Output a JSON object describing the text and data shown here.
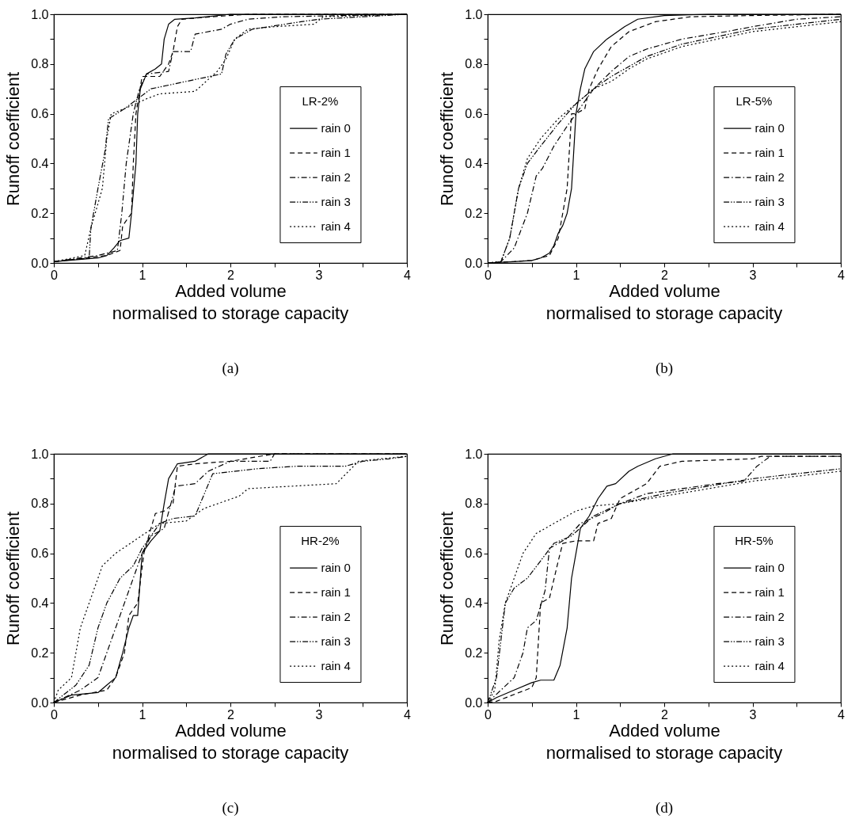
{
  "chart_data": [
    {
      "type": "line",
      "xlabel": "Added volume",
      "ylabel": "Runoff coefficient",
      "legend_title": "LR-2%",
      "legend": "right",
      "annotations": [
        "normalised to storage capacity",
        "(a)"
      ],
      "xlim": [
        0,
        4
      ],
      "ylim": [
        0,
        1
      ],
      "xticks": [
        0,
        {
          "value": 0.5,
          "label": null
        },
        1,
        {
          "value": 1.5,
          "label": null
        },
        2,
        {
          "value": 2.5,
          "label": null
        },
        3,
        {
          "value": 3.5,
          "label": null
        },
        4
      ],
      "yticks": [
        {
          "value": 0,
          "label": "0.0"
        },
        {
          "value": 0.1,
          "label": null
        },
        0.2,
        {
          "value": 0.3,
          "label": null
        },
        0.4,
        {
          "value": 0.5,
          "label": null
        },
        0.6,
        {
          "value": 0.7,
          "label": null
        },
        0.8,
        {
          "value": 0.9,
          "label": null
        },
        {
          "value": 1,
          "label": "1.0"
        }
      ],
      "series": [
        {
          "name": "rain 0",
          "color": "#000000",
          "line_style": "solid",
          "x": [
            0,
            0.5,
            0.6,
            0.68,
            0.75,
            0.85,
            0.88,
            0.93,
            0.95,
            0.98,
            1.05,
            1.15,
            1.22,
            1.25,
            1.3,
            1.37,
            1.6,
            2,
            4
          ],
          "values": [
            0.005,
            0.02,
            0.03,
            0.06,
            0.09,
            0.1,
            0.2,
            0.4,
            0.6,
            0.7,
            0.76,
            0.78,
            0.8,
            0.9,
            0.96,
            0.98,
            0.985,
            1,
            1
          ]
        },
        {
          "name": "rain 1",
          "color": "#000000",
          "line_style": "dashed",
          "x": [
            0,
            0.6,
            0.75,
            0.78,
            0.88,
            0.9,
            0.93,
            1,
            1.2,
            1.3,
            1.35,
            1.4,
            1.45,
            1.8,
            2.2,
            4
          ],
          "values": [
            0.005,
            0.03,
            0.05,
            0.15,
            0.2,
            0.4,
            0.6,
            0.75,
            0.75,
            0.8,
            0.85,
            0.95,
            0.98,
            0.99,
            1,
            1
          ]
        },
        {
          "name": "rain 2",
          "color": "#000000",
          "line_style": "dashdot",
          "x": [
            0,
            0.5,
            0.72,
            0.77,
            0.82,
            0.9,
            0.97,
            1.05,
            1.3,
            1.35,
            1.55,
            1.6,
            1.9,
            2,
            2.2,
            2.6,
            4
          ],
          "values": [
            0.005,
            0.03,
            0.05,
            0.2,
            0.4,
            0.6,
            0.7,
            0.76,
            0.77,
            0.85,
            0.85,
            0.92,
            0.94,
            0.96,
            0.98,
            0.99,
            1
          ]
        },
        {
          "name": "rain 3",
          "color": "#000000",
          "line_style": "dashdotdot",
          "x": [
            0,
            0.4,
            0.42,
            0.5,
            0.58,
            0.62,
            0.8,
            0.95,
            1.1,
            1.5,
            1.9,
            1.95,
            2.05,
            2.25,
            2.8,
            3,
            4
          ],
          "values": [
            0.005,
            0.02,
            0.14,
            0.3,
            0.45,
            0.58,
            0.62,
            0.66,
            0.7,
            0.73,
            0.76,
            0.84,
            0.9,
            0.94,
            0.97,
            0.98,
            1
          ]
        },
        {
          "name": "rain 4",
          "color": "#000000",
          "line_style": "dotted",
          "x": [
            0,
            0.35,
            0.42,
            0.55,
            0.6,
            0.65,
            0.8,
            1.05,
            1.2,
            1.6,
            1.85,
            1.95,
            2.05,
            2.2,
            2.5,
            2.95,
            3.05,
            4
          ],
          "values": [
            0.005,
            0.03,
            0.14,
            0.3,
            0.5,
            0.6,
            0.62,
            0.66,
            0.68,
            0.69,
            0.77,
            0.82,
            0.9,
            0.94,
            0.95,
            0.96,
            0.99,
            1
          ]
        }
      ]
    },
    {
      "type": "line",
      "xlabel": "Added volume",
      "ylabel": "Runoff coefficient",
      "legend_title": "LR-5%",
      "legend": "right",
      "annotations": [
        "normalised to storage capacity",
        "(b)"
      ],
      "xlim": [
        0,
        4
      ],
      "ylim": [
        0,
        1
      ],
      "xticks": [
        0,
        {
          "value": 0.5,
          "label": null
        },
        1,
        {
          "value": 1.5,
          "label": null
        },
        2,
        {
          "value": 2.5,
          "label": null
        },
        3,
        {
          "value": 3.5,
          "label": null
        },
        4
      ],
      "yticks": [
        {
          "value": 0,
          "label": "0.0"
        },
        {
          "value": 0.1,
          "label": null
        },
        0.2,
        {
          "value": 0.3,
          "label": null
        },
        0.4,
        {
          "value": 0.5,
          "label": null
        },
        0.6,
        {
          "value": 0.7,
          "label": null
        },
        0.8,
        {
          "value": 0.9,
          "label": null
        },
        {
          "value": 1,
          "label": "1.0"
        }
      ],
      "series": [
        {
          "name": "rain 0",
          "color": "#000000",
          "line_style": "solid",
          "x": [
            0,
            0.3,
            0.5,
            0.6,
            0.7,
            0.75,
            0.8,
            0.85,
            0.9,
            0.95,
            1,
            1.05,
            1.1,
            1.2,
            1.35,
            1.55,
            1.7,
            2,
            2.5,
            4
          ],
          "values": [
            0,
            0.005,
            0.01,
            0.02,
            0.04,
            0.07,
            0.12,
            0.15,
            0.2,
            0.3,
            0.6,
            0.7,
            0.78,
            0.85,
            0.9,
            0.95,
            0.98,
            0.995,
            1,
            1
          ]
        },
        {
          "name": "rain 1",
          "color": "#000000",
          "line_style": "dashed",
          "x": [
            0,
            0.5,
            0.7,
            0.8,
            0.9,
            0.95,
            1,
            1.1,
            1.15,
            1.25,
            1.4,
            1.6,
            1.9,
            2.3,
            3,
            4
          ],
          "values": [
            0,
            0.01,
            0.03,
            0.1,
            0.3,
            0.6,
            0.6,
            0.62,
            0.7,
            0.78,
            0.87,
            0.93,
            0.97,
            0.99,
            0.995,
            1
          ]
        },
        {
          "name": "rain 2",
          "color": "#000000",
          "line_style": "dashdot",
          "x": [
            0,
            0.15,
            0.3,
            0.45,
            0.55,
            0.62,
            0.75,
            0.9,
            1,
            1.1,
            1.2,
            1.4,
            1.6,
            1.8,
            2.2,
            2.7,
            3,
            3.5,
            4
          ],
          "values": [
            0,
            0.005,
            0.06,
            0.2,
            0.35,
            0.38,
            0.47,
            0.55,
            0.6,
            0.65,
            0.7,
            0.77,
            0.83,
            0.86,
            0.9,
            0.93,
            0.95,
            0.98,
            0.99
          ]
        },
        {
          "name": "rain 3",
          "color": "#000000",
          "line_style": "dashdotdot",
          "x": [
            0,
            0.15,
            0.25,
            0.35,
            0.45,
            0.6,
            0.8,
            1,
            1.2,
            1.4,
            1.6,
            1.8,
            2.2,
            2.6,
            3,
            3.5,
            4
          ],
          "values": [
            0,
            0.005,
            0.1,
            0.3,
            0.4,
            0.47,
            0.56,
            0.64,
            0.7,
            0.75,
            0.79,
            0.83,
            0.88,
            0.91,
            0.94,
            0.96,
            0.98
          ]
        },
        {
          "name": "rain 4",
          "color": "#000000",
          "line_style": "dotted",
          "x": [
            0,
            0.15,
            0.25,
            0.35,
            0.45,
            0.6,
            0.8,
            1,
            1.2,
            1.4,
            1.6,
            1.8,
            2.2,
            2.6,
            3,
            3.5,
            4
          ],
          "values": [
            0,
            0.005,
            0.1,
            0.3,
            0.42,
            0.5,
            0.58,
            0.64,
            0.7,
            0.73,
            0.78,
            0.82,
            0.87,
            0.9,
            0.93,
            0.95,
            0.97
          ]
        }
      ]
    },
    {
      "type": "line",
      "xlabel": "Added volume",
      "ylabel": "Runoff coefficient",
      "legend_title": "HR-2%",
      "legend": "right",
      "annotations": [
        "normalised to storage capacity",
        "(c)"
      ],
      "xlim": [
        0,
        4
      ],
      "ylim": [
        0,
        1
      ],
      "xticks": [
        0,
        {
          "value": 0.5,
          "label": null
        },
        1,
        {
          "value": 1.5,
          "label": null
        },
        2,
        {
          "value": 2.5,
          "label": null
        },
        3,
        {
          "value": 3.5,
          "label": null
        },
        4
      ],
      "yticks": [
        {
          "value": 0,
          "label": "0.0"
        },
        {
          "value": 0.1,
          "label": null
        },
        0.2,
        {
          "value": 0.3,
          "label": null
        },
        0.4,
        {
          "value": 0.5,
          "label": null
        },
        0.6,
        {
          "value": 0.7,
          "label": null
        },
        0.8,
        {
          "value": 0.9,
          "label": null
        },
        {
          "value": 1,
          "label": "1.0"
        }
      ],
      "series": [
        {
          "name": "rain 0",
          "color": "#000000",
          "line_style": "solid",
          "x": [
            0,
            0.2,
            0.5,
            0.6,
            0.7,
            0.78,
            0.85,
            0.9,
            0.95,
            1,
            1.1,
            1.2,
            1.25,
            1.3,
            1.4,
            1.6,
            1.75,
            4
          ],
          "values": [
            0,
            0.03,
            0.04,
            0.07,
            0.1,
            0.2,
            0.3,
            0.35,
            0.35,
            0.6,
            0.65,
            0.69,
            0.8,
            0.9,
            0.96,
            0.97,
            1,
            1
          ]
        },
        {
          "name": "rain 1",
          "color": "#000000",
          "line_style": "dashed",
          "x": [
            0,
            0.3,
            0.6,
            0.7,
            0.8,
            0.85,
            0.95,
            1.02,
            1.1,
            1.15,
            1.25,
            1.35,
            1.4,
            1.6,
            2,
            2.5,
            4
          ],
          "values": [
            0,
            0.03,
            0.05,
            0.1,
            0.2,
            0.35,
            0.4,
            0.6,
            0.7,
            0.76,
            0.77,
            0.8,
            0.95,
            0.96,
            0.97,
            1,
            1
          ]
        },
        {
          "name": "rain 2",
          "color": "#000000",
          "line_style": "dashdot",
          "x": [
            0,
            0.3,
            0.5,
            0.7,
            0.8,
            0.9,
            1,
            1.1,
            1.25,
            1.38,
            1.6,
            1.75,
            2,
            2.45,
            2.5,
            4
          ],
          "values": [
            0,
            0.05,
            0.1,
            0.3,
            0.4,
            0.5,
            0.6,
            0.67,
            0.7,
            0.87,
            0.88,
            0.93,
            0.97,
            0.97,
            1,
            1
          ]
        },
        {
          "name": "rain 3",
          "color": "#000000",
          "line_style": "dashdotdot",
          "x": [
            0,
            0.25,
            0.4,
            0.5,
            0.6,
            0.75,
            0.9,
            1,
            1.2,
            1.35,
            1.6,
            1.8,
            2.3,
            2.75,
            3.3,
            3.5,
            3.8,
            4
          ],
          "values": [
            0,
            0.07,
            0.15,
            0.3,
            0.4,
            0.5,
            0.55,
            0.62,
            0.72,
            0.74,
            0.75,
            0.92,
            0.94,
            0.95,
            0.95,
            0.97,
            0.98,
            0.99
          ]
        },
        {
          "name": "rain 4",
          "color": "#000000",
          "line_style": "dotted",
          "x": [
            0,
            0.05,
            0.2,
            0.3,
            0.4,
            0.55,
            0.7,
            0.95,
            1.2,
            1.5,
            1.7,
            2.1,
            2.2,
            3.2,
            3.45,
            3.7,
            4
          ],
          "values": [
            0,
            0.05,
            0.1,
            0.3,
            0.4,
            0.55,
            0.6,
            0.66,
            0.72,
            0.73,
            0.78,
            0.83,
            0.86,
            0.88,
            0.97,
            0.98,
            0.99
          ]
        }
      ]
    },
    {
      "type": "line",
      "xlabel": "Added volume",
      "ylabel": "Runoff coefficient",
      "legend_title": "HR-5%",
      "legend": "right",
      "annotations": [
        "normalised to storage capacity",
        "(d)"
      ],
      "xlim": [
        0,
        4
      ],
      "ylim": [
        0,
        1
      ],
      "xticks": [
        0,
        {
          "value": 0.5,
          "label": null
        },
        1,
        {
          "value": 1.5,
          "label": null
        },
        2,
        {
          "value": 2.5,
          "label": null
        },
        3,
        {
          "value": 3.5,
          "label": null
        },
        4
      ],
      "yticks": [
        {
          "value": 0,
          "label": "0.0"
        },
        {
          "value": 0.1,
          "label": null
        },
        0.2,
        {
          "value": 0.3,
          "label": null
        },
        0.4,
        {
          "value": 0.5,
          "label": null
        },
        0.6,
        {
          "value": 0.7,
          "label": null
        },
        0.8,
        {
          "value": 0.9,
          "label": null
        },
        {
          "value": 1,
          "label": "1.0"
        }
      ],
      "series": [
        {
          "name": "rain 0",
          "color": "#000000",
          "line_style": "solid",
          "x": [
            0,
            0.1,
            0.3,
            0.5,
            0.6,
            0.75,
            0.82,
            0.9,
            0.95,
            1,
            1.05,
            1.15,
            1.25,
            1.35,
            1.45,
            1.6,
            1.7,
            1.9,
            2.1,
            4
          ],
          "values": [
            0,
            0.02,
            0.05,
            0.08,
            0.09,
            0.09,
            0.15,
            0.3,
            0.5,
            0.6,
            0.7,
            0.75,
            0.82,
            0.87,
            0.88,
            0.93,
            0.95,
            0.98,
            1,
            1
          ]
        },
        {
          "name": "rain 1",
          "color": "#000000",
          "line_style": "dashed",
          "x": [
            0,
            0.1,
            0.5,
            0.55,
            0.6,
            0.7,
            0.8,
            0.85,
            1,
            1.2,
            1.25,
            1.4,
            1.5,
            1.8,
            1.95,
            2.2,
            3,
            3.1,
            4
          ],
          "values": [
            0,
            0.005,
            0.06,
            0.1,
            0.4,
            0.42,
            0.57,
            0.64,
            0.65,
            0.65,
            0.72,
            0.74,
            0.82,
            0.88,
            0.95,
            0.97,
            0.98,
            0.99,
            0.99
          ]
        },
        {
          "name": "rain 2",
          "color": "#000000",
          "line_style": "dashdot",
          "x": [
            0,
            0.3,
            0.4,
            0.45,
            0.55,
            0.65,
            0.7,
            0.9,
            1.05,
            1.3,
            1.5,
            1.8,
            2.2,
            2.6,
            2.9,
            3.05,
            3.2,
            4
          ],
          "values": [
            0,
            0.1,
            0.2,
            0.3,
            0.33,
            0.45,
            0.62,
            0.66,
            0.72,
            0.76,
            0.8,
            0.84,
            0.86,
            0.88,
            0.89,
            0.95,
            0.99,
            0.99
          ]
        },
        {
          "name": "rain 3",
          "color": "#000000",
          "line_style": "dashdotdot",
          "x": [
            0,
            0.1,
            0.15,
            0.2,
            0.3,
            0.45,
            0.6,
            0.75,
            0.95,
            1.2,
            1.5,
            2,
            2.5,
            3,
            3.5,
            4
          ],
          "values": [
            0,
            0.1,
            0.25,
            0.4,
            0.46,
            0.5,
            0.57,
            0.64,
            0.67,
            0.75,
            0.8,
            0.84,
            0.87,
            0.9,
            0.92,
            0.94
          ]
        },
        {
          "name": "rain 4",
          "color": "#000000",
          "line_style": "dotted",
          "x": [
            0,
            0.08,
            0.13,
            0.2,
            0.3,
            0.4,
            0.55,
            0.8,
            1,
            1.2,
            1.5,
            2,
            2.5,
            3,
            3.5,
            4
          ],
          "values": [
            0,
            0.05,
            0.25,
            0.4,
            0.5,
            0.6,
            0.68,
            0.73,
            0.77,
            0.79,
            0.8,
            0.83,
            0.86,
            0.89,
            0.91,
            0.93
          ]
        }
      ]
    }
  ]
}
